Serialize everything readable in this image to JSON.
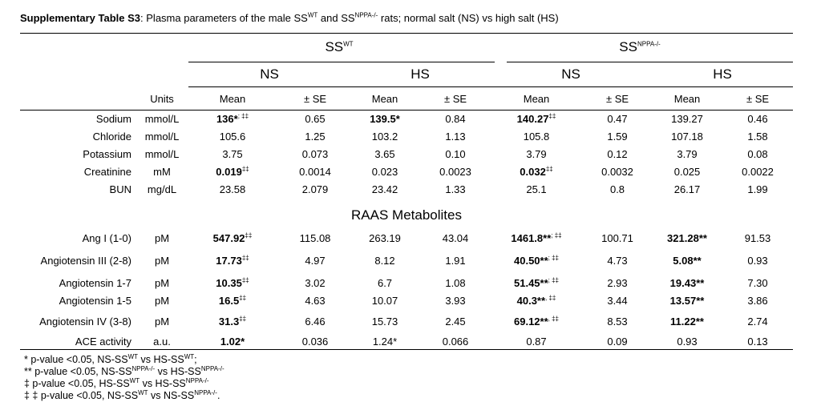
{
  "caption": {
    "label": "Supplementary Table S3",
    "pre": ": Plasma parameters of the male SS",
    "sup1": "WT",
    "mid": " and SS",
    "sup2": "NPPA-/-",
    "post": "  rats; normal salt (NS) vs high salt (HS)"
  },
  "header": {
    "group_ss_wt": {
      "base": "SS",
      "sup": "WT"
    },
    "group_ss_nppa": {
      "base": "SS",
      "sup": "NPPA-/-"
    },
    "conditions": [
      "NS",
      "HS",
      "NS",
      "HS"
    ],
    "units_label": "Units",
    "stat_labels": [
      "Mean",
      "± SE",
      "Mean",
      "± SE",
      "Mean",
      "± SE",
      "Mean",
      "± SE"
    ]
  },
  "section_raas": "RAAS Metabolites",
  "rows_plasma": [
    {
      "name": "Sodium",
      "unit": "mmol/L",
      "cells": [
        {
          "v": "136*",
          "s": "; ‡‡",
          "b": true
        },
        {
          "v": "0.65"
        },
        {
          "v": "139.5*",
          "b": true
        },
        {
          "v": "0.84"
        },
        {
          "v": "140.27",
          "s": "‡‡",
          "b": true
        },
        {
          "v": "0.47"
        },
        {
          "v": "139.27"
        },
        {
          "v": "0.46"
        }
      ]
    },
    {
      "name": "Chloride",
      "unit": "mmol/L",
      "cells": [
        {
          "v": "105.6"
        },
        {
          "v": "1.25"
        },
        {
          "v": "103.2"
        },
        {
          "v": "1.13"
        },
        {
          "v": "105.8"
        },
        {
          "v": "1.59"
        },
        {
          "v": "107.18"
        },
        {
          "v": "1.58"
        }
      ]
    },
    {
      "name": "Potassium",
      "unit": "mmol/L",
      "cells": [
        {
          "v": "3.75"
        },
        {
          "v": "0.073"
        },
        {
          "v": "3.65"
        },
        {
          "v": "0.10"
        },
        {
          "v": "3.79"
        },
        {
          "v": "0.12"
        },
        {
          "v": "3.79"
        },
        {
          "v": "0.08"
        }
      ]
    },
    {
      "name": "Creatinine",
      "unit": "mM",
      "cells": [
        {
          "v": "0.019",
          "s": "‡‡",
          "b": true
        },
        {
          "v": "0.0014"
        },
        {
          "v": "0.023"
        },
        {
          "v": "0.0023"
        },
        {
          "v": "0.032",
          "s": "‡‡",
          "b": true
        },
        {
          "v": "0.0032"
        },
        {
          "v": "0.025"
        },
        {
          "v": "0.0022"
        }
      ]
    },
    {
      "name": "BUN",
      "unit": "mg/dL",
      "cells": [
        {
          "v": "23.58"
        },
        {
          "v": "2.079"
        },
        {
          "v": "23.42"
        },
        {
          "v": "1.33"
        },
        {
          "v": "25.1"
        },
        {
          "v": "0.8"
        },
        {
          "v": "26.17"
        },
        {
          "v": "1.99"
        }
      ]
    }
  ],
  "rows_raas": [
    {
      "name": "Ang I (1-0)",
      "unit": "pM",
      "cells": [
        {
          "v": "547.92",
          "s": "‡‡",
          "b": true
        },
        {
          "v": "115.08"
        },
        {
          "v": "263.19"
        },
        {
          "v": "43.04"
        },
        {
          "v": "1461.8**",
          "s": "; ‡‡",
          "b": true
        },
        {
          "v": "100.71"
        },
        {
          "v": "321.28**",
          "b": true
        },
        {
          "v": "91.53"
        }
      ]
    },
    {
      "name": "Angiotensin III (2-8)",
      "unit": "pM",
      "cells": [
        {
          "v": "17.73",
          "s": "‡‡",
          "b": true
        },
        {
          "v": "4.97"
        },
        {
          "v": "8.12"
        },
        {
          "v": "1.91"
        },
        {
          "v": "40.50**",
          "s": "; ‡‡",
          "b": true
        },
        {
          "v": "4.73"
        },
        {
          "v": "5.08**",
          "b": true
        },
        {
          "v": "0.93"
        }
      ]
    },
    {
      "name": "Angiotensin 1-7",
      "unit": "pM",
      "cells": [
        {
          "v": "10.35",
          "s": "‡‡",
          "b": true
        },
        {
          "v": "3.02"
        },
        {
          "v": "6.7"
        },
        {
          "v": "1.08"
        },
        {
          "v": "51.45**",
          "s": "; ‡‡",
          "b": true
        },
        {
          "v": "2.93"
        },
        {
          "v": "19.43**",
          "b": true
        },
        {
          "v": "7.30"
        }
      ]
    },
    {
      "name": "Angiotensin 1-5",
      "unit": "pM",
      "cells": [
        {
          "v": "16.5",
          "s": "‡‡",
          "b": true
        },
        {
          "v": "4.63"
        },
        {
          "v": "10.07"
        },
        {
          "v": "3.93"
        },
        {
          "v": "40.3**",
          "s": ", ‡‡",
          "b": true
        },
        {
          "v": "3.44"
        },
        {
          "v": "13.57**",
          "b": true
        },
        {
          "v": "3.86"
        }
      ]
    },
    {
      "name": "Angiotensin IV (3-8)",
      "unit": "pM",
      "cells": [
        {
          "v": "31.3",
          "s": "‡‡",
          "b": true
        },
        {
          "v": "6.46"
        },
        {
          "v": "15.73"
        },
        {
          "v": "2.45"
        },
        {
          "v": "69.12**",
          "s": ", ‡‡",
          "b": true
        },
        {
          "v": "8.53"
        },
        {
          "v": "11.22**",
          "b": true
        },
        {
          "v": "2.74"
        }
      ]
    },
    {
      "name": "ACE activity",
      "unit": "a.u.",
      "cells": [
        {
          "v": "1.02*",
          "b": true
        },
        {
          "v": "0.036"
        },
        {
          "v": "1.24*"
        },
        {
          "v": "0.066"
        },
        {
          "v": "0.87"
        },
        {
          "v": "0.09"
        },
        {
          "v": "0.93"
        },
        {
          "v": "0.13"
        }
      ]
    }
  ],
  "footnotes": [
    {
      "parts": [
        {
          "t": "* p-value <0.05, NS-SS"
        },
        {
          "sup": "WT"
        },
        {
          "t": " vs HS-SS"
        },
        {
          "sup": "WT"
        },
        {
          "t": ";"
        }
      ]
    },
    {
      "parts": [
        {
          "t": "** p-value <0.05, NS-SS"
        },
        {
          "sup": "NPPA-/-"
        },
        {
          "t": " vs HS-SS"
        },
        {
          "sup": "NPPA-/-"
        }
      ]
    },
    {
      "parts": [
        {
          "t": "‡ p-value <0.05, HS-SS"
        },
        {
          "sup": "WT"
        },
        {
          "t": " vs HS-SS"
        },
        {
          "sup": "NPPA-/-"
        }
      ]
    },
    {
      "parts": [
        {
          "t": "‡ ‡ p-value <0.05, NS-SS"
        },
        {
          "sup": "WT"
        },
        {
          "t": " vs NS-SS"
        },
        {
          "sup": "NPPA-/-"
        },
        {
          "t": "."
        }
      ]
    }
  ]
}
